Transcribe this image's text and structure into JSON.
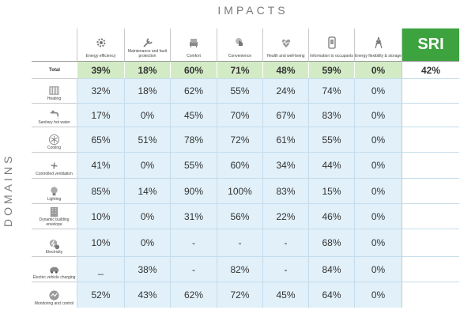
{
  "impacts_title": "IMPACTS",
  "domains_title": "DOMAINS",
  "sri_label": "SRI",
  "total_label": "Total",
  "chart_data": {
    "type": "table",
    "columns": [
      {
        "label": "Energy efficiency",
        "icon": "gear-icon"
      },
      {
        "label": "Maintenance and fault protection",
        "icon": "wrench-icon"
      },
      {
        "label": "Comfort",
        "icon": "armchair-icon"
      },
      {
        "label": "Convenience",
        "icon": "hand-pointer-icon"
      },
      {
        "label": "Health and well-being",
        "icon": "heartbeat-icon"
      },
      {
        "label": "Information to occupants",
        "icon": "phone-info-icon"
      },
      {
        "label": "Energy flexibility & storage",
        "icon": "pylon-icon"
      }
    ],
    "totals": [
      "39%",
      "18%",
      "60%",
      "71%",
      "48%",
      "59%",
      "0%"
    ],
    "sri_total": "42%",
    "rows": [
      {
        "label": "Heating",
        "icon": "radiator-icon",
        "values": [
          "32%",
          "18%",
          "62%",
          "55%",
          "24%",
          "74%",
          "0%"
        ]
      },
      {
        "label": "Sanitary hot water",
        "icon": "faucet-icon",
        "values": [
          "17%",
          "0%",
          "45%",
          "70%",
          "67%",
          "83%",
          "0%"
        ]
      },
      {
        "label": "Cooling",
        "icon": "snowflake-icon",
        "values": [
          "65%",
          "51%",
          "78%",
          "72%",
          "61%",
          "55%",
          "0%"
        ]
      },
      {
        "label": "Controlled ventilation",
        "icon": "fan-icon",
        "values": [
          "41%",
          "0%",
          "55%",
          "60%",
          "34%",
          "44%",
          "0%"
        ]
      },
      {
        "label": "Lighting",
        "icon": "bulb-icon",
        "values": [
          "85%",
          "14%",
          "90%",
          "100%",
          "83%",
          "15%",
          "0%"
        ]
      },
      {
        "label": "Dynamic building envelope",
        "icon": "building-icon",
        "values": [
          "10%",
          "0%",
          "31%",
          "56%",
          "22%",
          "46%",
          "0%"
        ]
      },
      {
        "label": "Electricity",
        "icon": "electricity-icon",
        "values": [
          "10%",
          "0%",
          "-",
          "-",
          "-",
          "68%",
          "0%"
        ]
      },
      {
        "label": "Electric vehicle charging",
        "icon": "car-icon",
        "values": [
          "_",
          "38%",
          "-",
          "82%",
          "-",
          "84%",
          "0%"
        ]
      },
      {
        "label": "Monitoring and control",
        "icon": "monitor-icon",
        "values": [
          "52%",
          "43%",
          "62%",
          "72%",
          "45%",
          "64%",
          "0%"
        ]
      }
    ]
  }
}
